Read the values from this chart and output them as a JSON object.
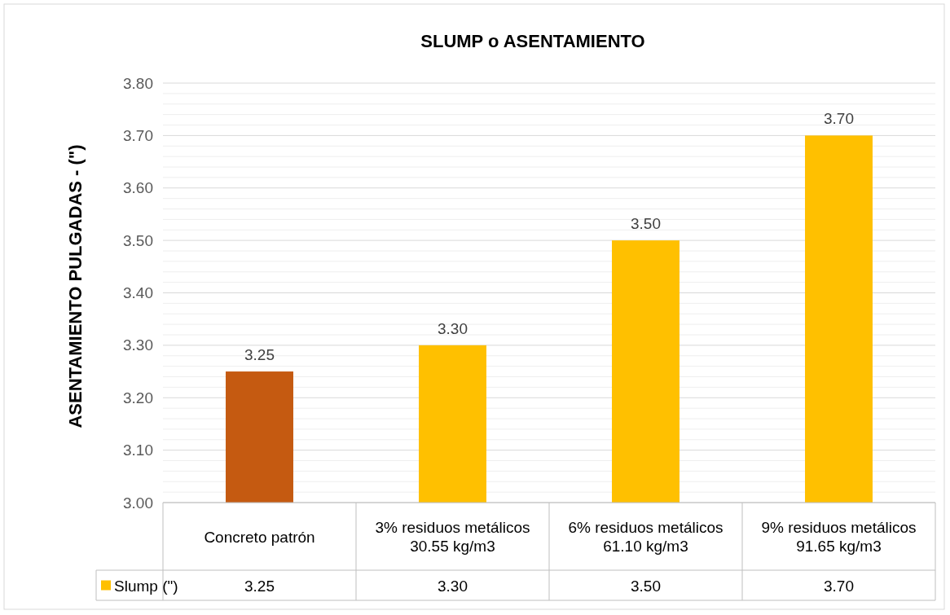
{
  "chart_data": {
    "type": "bar",
    "title": "SLUMP o ASENTAMIENTO",
    "ylabel": "ASENTAMIENTO PULGADAS - (\")",
    "categories": [
      "Concreto patrón",
      "3% residuos metálicos 30.55 kg/m3",
      "6% residuos metálicos 61.10 kg/m3",
      "9% residuos metálicos 91.65 kg/m3"
    ],
    "series": [
      {
        "name": "Slump (\")",
        "color": "#ffc000",
        "colors": [
          "#c55a11",
          "#ffc000",
          "#ffc000",
          "#ffc000"
        ],
        "values": [
          3.25,
          3.3,
          3.5,
          3.7
        ],
        "value_labels": [
          "3.25",
          "3.30",
          "3.50",
          "3.70"
        ]
      }
    ],
    "ylim": [
      3.0,
      3.8
    ],
    "yticks": [
      {
        "value": 3.0,
        "label": "3.00"
      },
      {
        "value": 3.02,
        "label": null
      },
      {
        "value": 3.04,
        "label": null
      },
      {
        "value": 3.06,
        "label": null
      },
      {
        "value": 3.08,
        "label": null
      },
      {
        "value": 3.1,
        "label": "3.10"
      },
      {
        "value": 3.12,
        "label": null
      },
      {
        "value": 3.14,
        "label": null
      },
      {
        "value": 3.16,
        "label": null
      },
      {
        "value": 3.18,
        "label": null
      },
      {
        "value": 3.2,
        "label": "3.20"
      },
      {
        "value": 3.22,
        "label": null
      },
      {
        "value": 3.24,
        "label": null
      },
      {
        "value": 3.26,
        "label": null
      },
      {
        "value": 3.28,
        "label": null
      },
      {
        "value": 3.3,
        "label": "3.30"
      },
      {
        "value": 3.32,
        "label": null
      },
      {
        "value": 3.34,
        "label": null
      },
      {
        "value": 3.36,
        "label": null
      },
      {
        "value": 3.38,
        "label": null
      },
      {
        "value": 3.4,
        "label": "3.40"
      },
      {
        "value": 3.42,
        "label": null
      },
      {
        "value": 3.44,
        "label": null
      },
      {
        "value": 3.46,
        "label": null
      },
      {
        "value": 3.48,
        "label": null
      },
      {
        "value": 3.5,
        "label": "3.50"
      },
      {
        "value": 3.52,
        "label": null
      },
      {
        "value": 3.54,
        "label": null
      },
      {
        "value": 3.56,
        "label": null
      },
      {
        "value": 3.58,
        "label": null
      },
      {
        "value": 3.6,
        "label": "3.60"
      },
      {
        "value": 3.62,
        "label": null
      },
      {
        "value": 3.64,
        "label": null
      },
      {
        "value": 3.66,
        "label": null
      },
      {
        "value": 3.68,
        "label": null
      },
      {
        "value": 3.7,
        "label": "3.70"
      },
      {
        "value": 3.72,
        "label": null
      },
      {
        "value": 3.74,
        "label": null
      },
      {
        "value": 3.76,
        "label": null
      },
      {
        "value": 3.78,
        "label": null
      },
      {
        "value": 3.8,
        "label": "3.80"
      }
    ],
    "grid": "y",
    "legend": "bottom left"
  }
}
